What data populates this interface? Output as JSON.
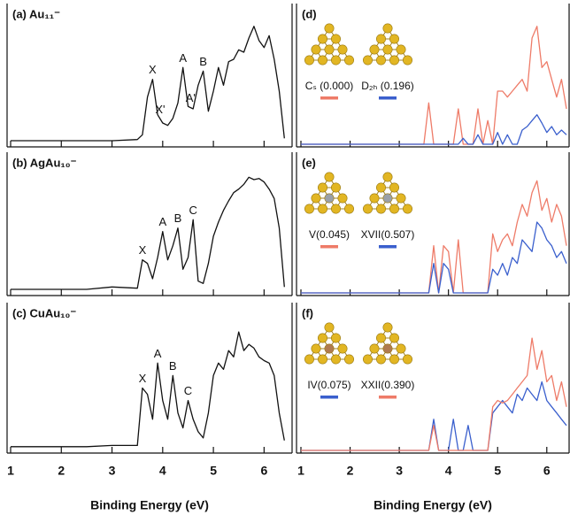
{
  "chart_data": [
    {
      "type": "line",
      "title": "(a) Au₁₁⁻",
      "color": "#111111",
      "x": [
        1.0,
        1.5,
        2.0,
        2.5,
        3.0,
        3.5,
        3.6,
        3.7,
        3.8,
        3.9,
        4.0,
        4.1,
        4.2,
        4.3,
        4.4,
        4.5,
        4.6,
        4.7,
        4.8,
        4.9,
        5.0,
        5.1,
        5.2,
        5.3,
        5.4,
        5.5,
        5.6,
        5.7,
        5.8,
        5.9,
        6.0,
        6.1,
        6.2,
        6.3,
        6.4
      ],
      "values": [
        3,
        3,
        3,
        3,
        3,
        4,
        8,
        40,
        55,
        25,
        18,
        16,
        22,
        35,
        65,
        32,
        30,
        50,
        62,
        28,
        45,
        65,
        50,
        70,
        72,
        80,
        78,
        90,
        100,
        88,
        82,
        92,
        72,
        45,
        5
      ],
      "ylim": [
        0,
        105
      ],
      "annotations": [
        {
          "text": "X",
          "x": 3.8
        },
        {
          "text": "X'",
          "x": 3.95
        },
        {
          "text": "A",
          "x": 4.4
        },
        {
          "text": "A'",
          "x": 4.55
        },
        {
          "text": "B",
          "x": 4.8
        }
      ]
    },
    {
      "type": "line",
      "title": "(b) AgAu₁₀⁻",
      "color": "#111111",
      "x": [
        1.0,
        1.5,
        2.0,
        2.5,
        3.0,
        3.5,
        3.6,
        3.7,
        3.8,
        3.9,
        4.0,
        4.1,
        4.2,
        4.3,
        4.4,
        4.5,
        4.6,
        4.7,
        4.8,
        4.9,
        5.0,
        5.1,
        5.2,
        5.3,
        5.4,
        5.5,
        5.6,
        5.7,
        5.8,
        5.9,
        6.0,
        6.1,
        6.2,
        6.3,
        6.4
      ],
      "values": [
        3,
        3,
        3,
        3,
        5,
        4,
        28,
        25,
        12,
        30,
        52,
        28,
        40,
        55,
        20,
        30,
        62,
        10,
        8,
        25,
        48,
        60,
        70,
        78,
        85,
        88,
        92,
        98,
        96,
        97,
        94,
        88,
        80,
        55,
        5
      ],
      "ylim": [
        0,
        105
      ],
      "annotations": [
        {
          "text": "X",
          "x": 3.6
        },
        {
          "text": "A",
          "x": 4.0
        },
        {
          "text": "B",
          "x": 4.3
        },
        {
          "text": "C",
          "x": 4.6
        }
      ]
    },
    {
      "type": "line",
      "title": "(c) CuAu₁₀⁻",
      "color": "#111111",
      "x": [
        1.0,
        1.5,
        2.0,
        2.5,
        3.0,
        3.5,
        3.6,
        3.7,
        3.8,
        3.9,
        4.0,
        4.1,
        4.2,
        4.3,
        4.4,
        4.5,
        4.6,
        4.7,
        4.8,
        4.9,
        5.0,
        5.1,
        5.2,
        5.3,
        5.4,
        5.5,
        5.6,
        5.7,
        5.8,
        5.9,
        6.0,
        6.1,
        6.2,
        6.3,
        6.4
      ],
      "values": [
        3,
        3,
        3,
        3,
        4,
        4,
        50,
        45,
        25,
        70,
        40,
        25,
        60,
        30,
        18,
        40,
        25,
        15,
        10,
        30,
        60,
        70,
        65,
        80,
        75,
        95,
        80,
        85,
        82,
        75,
        72,
        70,
        60,
        30,
        8
      ],
      "ylim": [
        0,
        105
      ],
      "xlim": [
        1,
        6.5
      ],
      "xticks": [
        1,
        2,
        3,
        4,
        5,
        6
      ],
      "xlabel": "Binding Energy (eV)",
      "annotations": [
        {
          "text": "X",
          "x": 3.6
        },
        {
          "text": "A",
          "x": 3.9
        },
        {
          "text": "B",
          "x": 4.2
        },
        {
          "text": "C",
          "x": 4.5
        }
      ]
    },
    {
      "type": "line",
      "title": "(d)",
      "x": [
        1.0,
        1.5,
        2.0,
        2.5,
        3.0,
        3.5,
        3.6,
        3.7,
        3.8,
        3.9,
        4.0,
        4.1,
        4.2,
        4.3,
        4.4,
        4.5,
        4.6,
        4.7,
        4.8,
        4.9,
        5.0,
        5.1,
        5.2,
        5.3,
        5.4,
        5.5,
        5.6,
        5.7,
        5.8,
        5.9,
        6.0,
        6.1,
        6.2,
        6.3,
        6.4
      ],
      "ylim": [
        0,
        105
      ],
      "series": [
        {
          "name": "Cₛ (0.000)",
          "color": "#ee7b68",
          "values": [
            0,
            0,
            0,
            0,
            0,
            0,
            35,
            0,
            0,
            0,
            0,
            0,
            30,
            0,
            0,
            0,
            30,
            0,
            20,
            0,
            45,
            45,
            40,
            45,
            50,
            55,
            45,
            90,
            100,
            65,
            70,
            55,
            40,
            55,
            30
          ]
        },
        {
          "name": "D₂ₕ (0.196)",
          "color": "#3a5fcd",
          "values": [
            0,
            0,
            0,
            0,
            0,
            0,
            0,
            0,
            0,
            0,
            0,
            0,
            0,
            5,
            0,
            0,
            8,
            0,
            0,
            0,
            10,
            0,
            8,
            0,
            0,
            12,
            15,
            20,
            25,
            18,
            10,
            15,
            8,
            12,
            8
          ]
        }
      ]
    },
    {
      "type": "line",
      "title": "(e)",
      "x": [
        1.0,
        1.5,
        2.0,
        2.5,
        3.0,
        3.5,
        3.6,
        3.7,
        3.8,
        3.9,
        4.0,
        4.1,
        4.2,
        4.3,
        4.4,
        4.5,
        4.6,
        4.7,
        4.8,
        4.9,
        5.0,
        5.1,
        5.2,
        5.3,
        5.4,
        5.5,
        5.6,
        5.7,
        5.8,
        5.9,
        6.0,
        6.1,
        6.2,
        6.3,
        6.4
      ],
      "ylim": [
        0,
        105
      ],
      "series": [
        {
          "name": "V(0.045)",
          "color": "#ee7b68",
          "values": [
            0,
            0,
            0,
            0,
            0,
            0,
            0,
            40,
            0,
            40,
            35,
            0,
            45,
            0,
            0,
            0,
            0,
            0,
            0,
            50,
            35,
            45,
            50,
            40,
            60,
            75,
            65,
            85,
            95,
            70,
            80,
            60,
            75,
            65,
            40
          ]
        },
        {
          "name": "XVII(0.507)",
          "color": "#3a5fcd",
          "values": [
            0,
            0,
            0,
            0,
            0,
            0,
            0,
            25,
            0,
            25,
            20,
            0,
            0,
            0,
            0,
            0,
            0,
            0,
            0,
            20,
            15,
            25,
            15,
            30,
            25,
            45,
            40,
            35,
            60,
            55,
            45,
            40,
            30,
            35,
            25
          ]
        }
      ]
    },
    {
      "type": "line",
      "title": "(f)",
      "x": [
        1.0,
        1.5,
        2.0,
        2.5,
        3.0,
        3.5,
        3.6,
        3.7,
        3.8,
        3.9,
        4.0,
        4.1,
        4.2,
        4.3,
        4.4,
        4.5,
        4.6,
        4.7,
        4.8,
        4.9,
        5.0,
        5.1,
        5.2,
        5.3,
        5.4,
        5.5,
        5.6,
        5.7,
        5.8,
        5.9,
        6.0,
        6.1,
        6.2,
        6.3,
        6.4
      ],
      "ylim": [
        0,
        105
      ],
      "xlim": [
        1,
        6.4
      ],
      "xticks": [
        1,
        2,
        3,
        4,
        5,
        6
      ],
      "xlabel": "Binding Energy (eV)",
      "series": [
        {
          "name": "IV(0.075)",
          "color": "#3a5fcd",
          "values": [
            0,
            0,
            0,
            0,
            0,
            0,
            0,
            25,
            0,
            0,
            0,
            25,
            0,
            0,
            20,
            0,
            0,
            0,
            0,
            30,
            35,
            40,
            35,
            30,
            45,
            40,
            50,
            45,
            40,
            55,
            40,
            35,
            30,
            25,
            20
          ]
        },
        {
          "name": "XXII(0.390)",
          "color": "#ee7b68",
          "values": [
            0,
            0,
            0,
            0,
            0,
            0,
            0,
            20,
            0,
            0,
            0,
            0,
            0,
            0,
            0,
            0,
            0,
            0,
            0,
            35,
            40,
            38,
            40,
            45,
            50,
            55,
            60,
            90,
            65,
            80,
            55,
            60,
            40,
            55,
            35
          ]
        }
      ]
    }
  ]
}
